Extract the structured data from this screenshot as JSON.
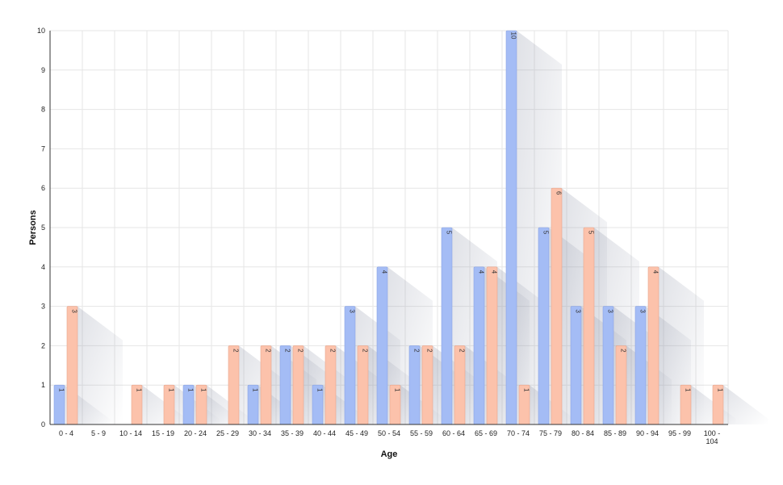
{
  "chart_data": {
    "type": "bar",
    "title": "",
    "xlabel": "Age",
    "ylabel": "Persons",
    "ylim": [
      0,
      10
    ],
    "yticks": [
      0,
      1,
      2,
      3,
      4,
      5,
      6,
      7,
      8,
      9,
      10
    ],
    "grid": true,
    "categories": [
      "0 - 4",
      "5 - 9",
      "10 - 14",
      "15 - 19",
      "20 - 24",
      "25 - 29",
      "30 - 34",
      "35 - 39",
      "40 - 44",
      "45 - 49",
      "50 - 54",
      "55 - 59",
      "60 - 64",
      "65 - 69",
      "70 - 74",
      "75 - 79",
      "80 - 84",
      "85 - 89",
      "90 - 94",
      "95 - 99",
      "100 - 104"
    ],
    "series": [
      {
        "color": "#a4bcf5",
        "values": [
          1,
          0,
          0,
          0,
          1,
          0,
          1,
          2,
          1,
          3,
          4,
          2,
          5,
          4,
          10,
          5,
          3,
          3,
          3,
          0,
          0
        ]
      },
      {
        "color": "#fcc2ab",
        "values": [
          3,
          0,
          1,
          1,
          1,
          2,
          2,
          2,
          2,
          2,
          1,
          2,
          2,
          4,
          1,
          6,
          5,
          2,
          4,
          1,
          1
        ]
      }
    ]
  }
}
